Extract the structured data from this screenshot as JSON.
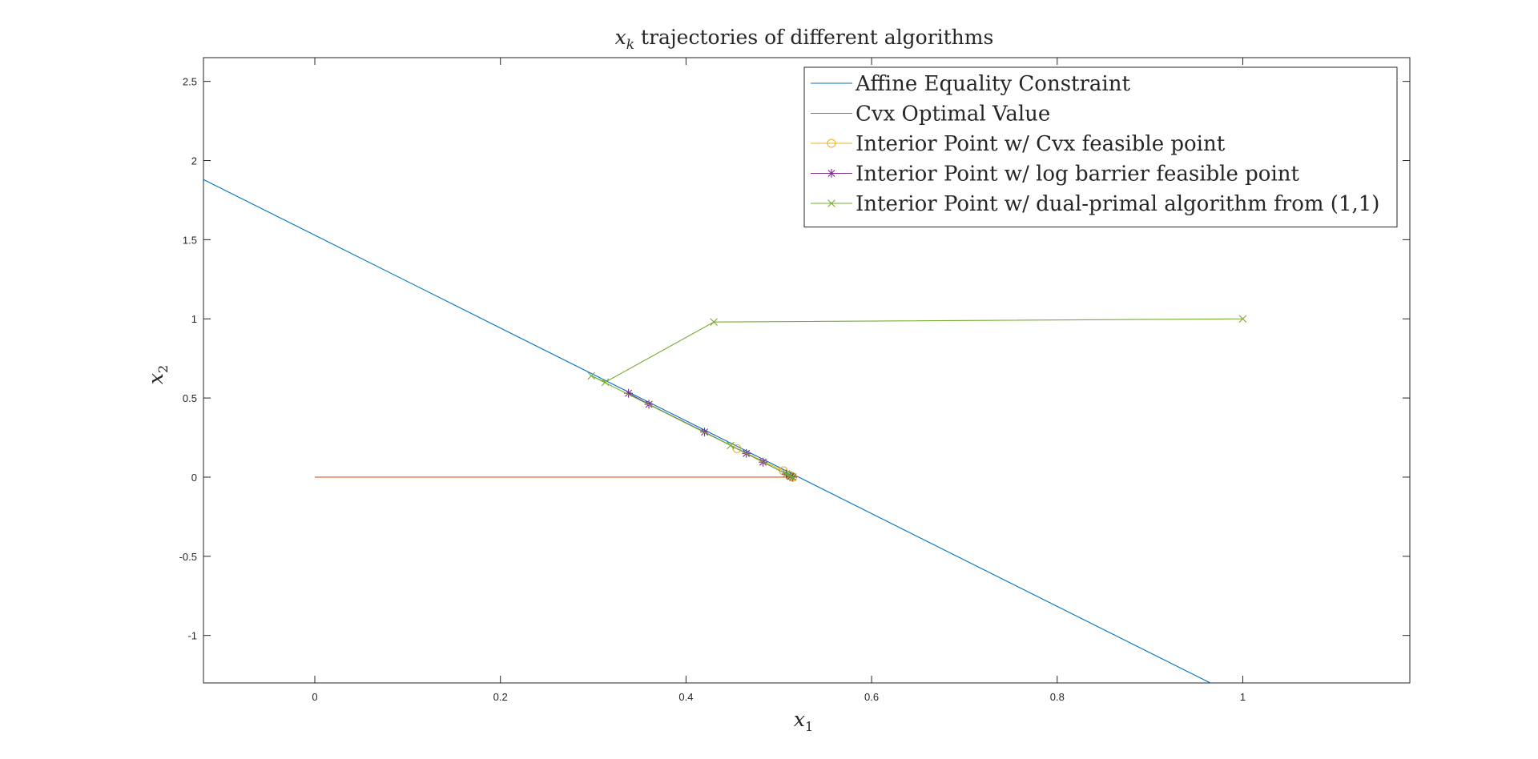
{
  "chart_data": {
    "type": "line",
    "title": "x_k trajectories of different algorithms",
    "title_var": "x",
    "title_sub": "k",
    "title_rest": " trajectories of different algorithms",
    "xlabel_var": "x",
    "xlabel_sub": "1",
    "ylabel_var": "x",
    "ylabel_sub": "2",
    "xlim": [
      -0.12,
      1.18
    ],
    "ylim": [
      -1.3,
      2.65
    ],
    "xticks": [
      0,
      0.2,
      0.4,
      0.6,
      0.8,
      1
    ],
    "xtick_labels": [
      "0",
      "0.2",
      "0.4",
      "0.6",
      "0.8",
      "1"
    ],
    "yticks": [
      -1,
      -0.5,
      0,
      0.5,
      1,
      1.5,
      2,
      2.5
    ],
    "ytick_labels": [
      "-1",
      "-0.5",
      "0",
      "0.5",
      "1",
      "1.5",
      "2",
      "2.5"
    ],
    "grid": false,
    "legend_position": "top-right",
    "series": [
      {
        "name": "Affine Equality Constraint",
        "color": "#0072BD",
        "marker": "none",
        "x": [
          -0.12,
          0.965
        ],
        "y": [
          1.88,
          -1.3
        ]
      },
      {
        "name": "Cvx Optimal Value",
        "color": "#D95319",
        "marker": "none",
        "x": [
          0,
          0.515
        ],
        "y": [
          0,
          0
        ]
      },
      {
        "name": "Interior Point w/ Cvx feasible point",
        "color": "#EDB120",
        "marker": "circle",
        "x": [
          0.455,
          0.505,
          0.512,
          0.515
        ],
        "y": [
          0.18,
          0.04,
          0.01,
          0.0
        ]
      },
      {
        "name": "Interior Point w/ log barrier feasible point",
        "color": "#7E2F8E",
        "marker": "star",
        "x": [
          0.338,
          0.36,
          0.42,
          0.465,
          0.483,
          0.508,
          0.513,
          0.515
        ],
        "y": [
          0.53,
          0.46,
          0.285,
          0.15,
          0.095,
          0.02,
          0.005,
          0.0
        ]
      },
      {
        "name": "Interior Point w/ dual-primal algorithm from (1,1)",
        "color": "#77AC30",
        "marker": "x",
        "x": [
          1.0,
          0.43,
          0.313,
          0.298,
          0.448,
          0.508,
          0.512,
          0.515
        ],
        "y": [
          1.0,
          0.98,
          0.6,
          0.64,
          0.2,
          0.02,
          0.008,
          0.0
        ]
      }
    ]
  }
}
